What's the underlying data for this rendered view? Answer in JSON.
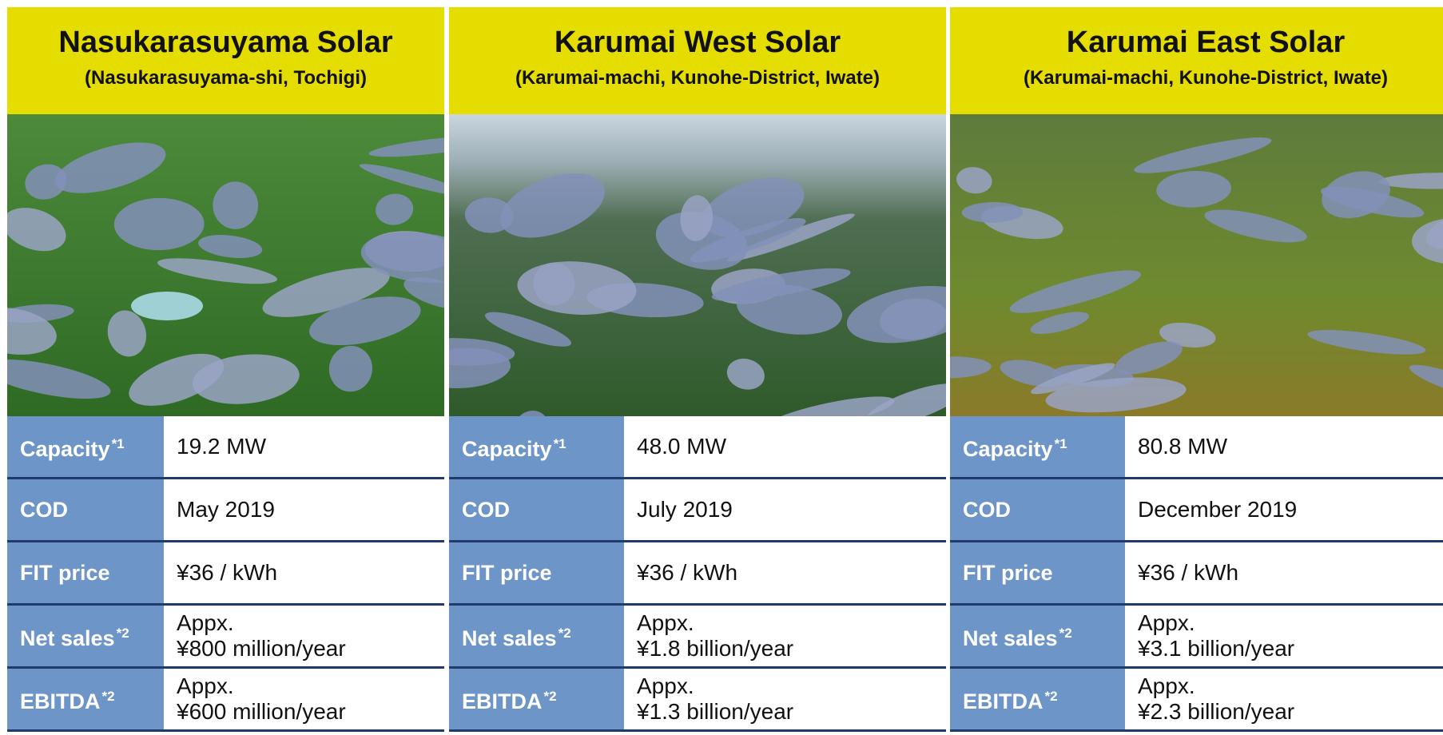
{
  "panels": [
    {
      "title": "Nasukarasuyama Solar",
      "subtitle": "(Nasukarasuyama-shi, Tochigi)",
      "rows": [
        {
          "label": "Capacity",
          "note": "*1",
          "value": [
            "19.2 MW"
          ]
        },
        {
          "label": "COD",
          "value": [
            "May 2019"
          ]
        },
        {
          "label": "FIT price",
          "value": [
            "¥36 / kWh"
          ]
        },
        {
          "label": "Net sales",
          "note": "*2",
          "value": [
            "Appx.",
            "¥800 million/year"
          ]
        },
        {
          "label": "EBITDA",
          "note": "*2",
          "value": [
            "Appx.",
            "¥600 million/year"
          ]
        }
      ]
    },
    {
      "title": "Karumai West Solar",
      "subtitle": "(Karumai-machi, Kunohe-District, Iwate)",
      "rows": [
        {
          "label": "Capacity",
          "note": "*1",
          "value": [
            "48.0 MW"
          ]
        },
        {
          "label": "COD",
          "value": [
            "July 2019"
          ]
        },
        {
          "label": "FIT price",
          "value": [
            "¥36 / kWh"
          ]
        },
        {
          "label": "Net sales",
          "note": "*2",
          "value": [
            "Appx.",
            "¥1.8 billion/year"
          ]
        },
        {
          "label": "EBITDA",
          "note": "*2",
          "value": [
            "Appx.",
            "¥1.3 billion/year"
          ]
        }
      ]
    },
    {
      "title": "Karumai East Solar",
      "subtitle": "(Karumai-machi, Kunohe-District, Iwate)",
      "rows": [
        {
          "label": "Capacity",
          "note": "*1",
          "value": [
            "80.8 MW"
          ]
        },
        {
          "label": "COD",
          "value": [
            "December 2019"
          ]
        },
        {
          "label": "FIT price",
          "value": [
            "¥36 / kWh"
          ]
        },
        {
          "label": "Net sales",
          "note": "*2",
          "value": [
            "Appx.",
            "¥3.1 billion/year"
          ]
        },
        {
          "label": "EBITDA",
          "note": "*2",
          "value": [
            "Appx.",
            "¥2.3 billion/year"
          ]
        }
      ]
    }
  ]
}
